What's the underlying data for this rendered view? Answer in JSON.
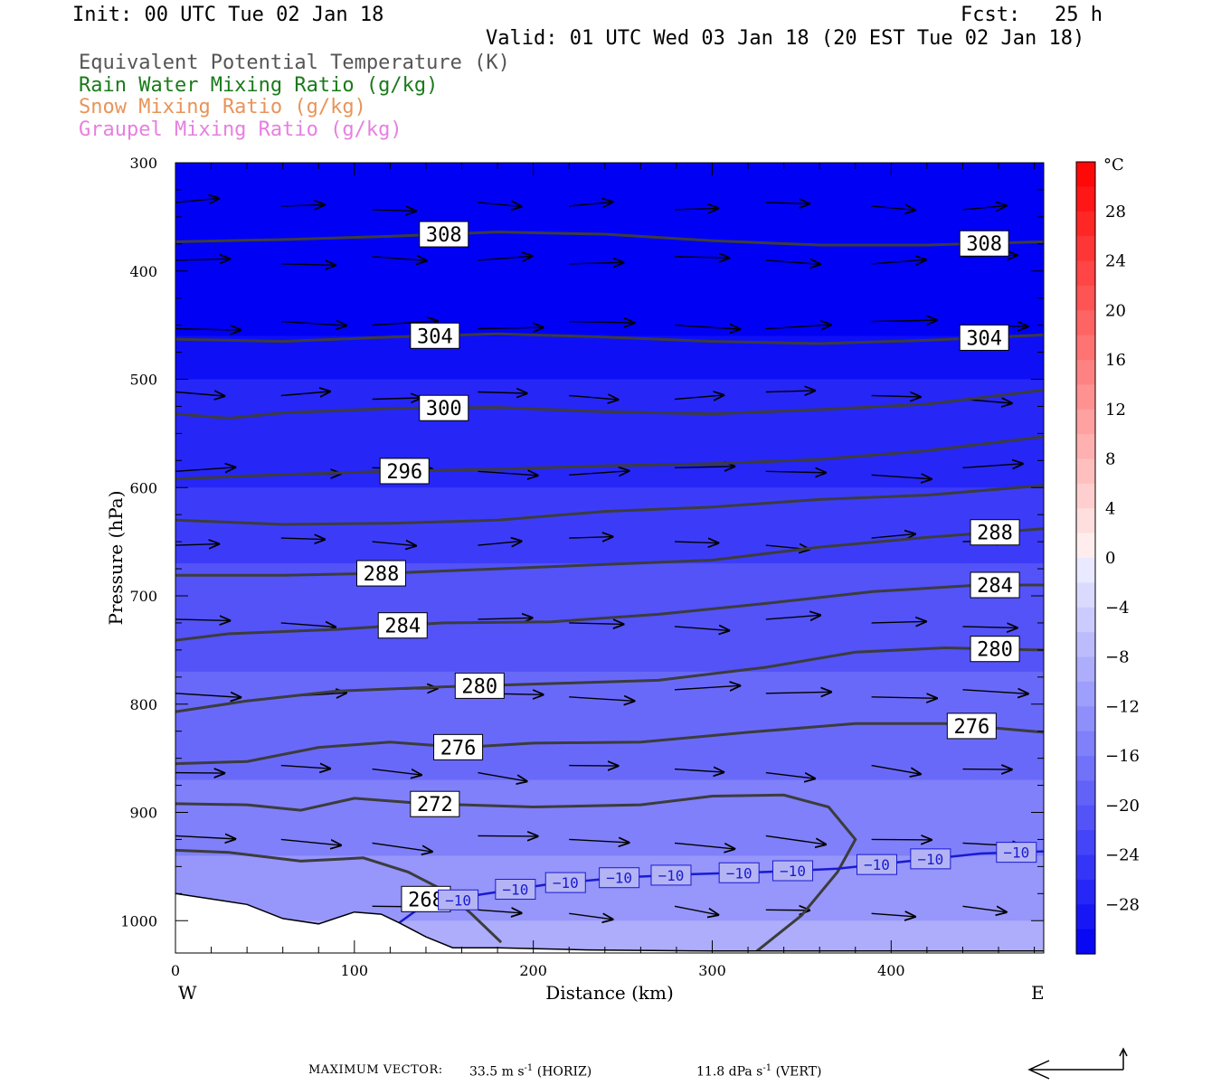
{
  "header": {
    "init": "Init: 00 UTC Tue 02 Jan 18",
    "fcst_label": "Fcst:",
    "fcst_value": "25 h",
    "valid": "Valid: 01 UTC Wed 03 Jan 18 (20 EST Tue 02 Jan 18)",
    "fields": [
      {
        "text": "Equivalent Potential Temperature (K)",
        "color": "#555555"
      },
      {
        "text": "Rain Water Mixing Ratio (g/kg)",
        "color": "#1a7a1a"
      },
      {
        "text": "Snow Mixing Ratio (g/kg)",
        "color": "#e8945a"
      },
      {
        "text": "Graupel Mixing Ratio (g/kg)",
        "color": "#e77fe0"
      }
    ]
  },
  "footer": {
    "max_vector_label": "MAXIMUM VECTOR:",
    "horiz_value": "33.5 m s",
    "horiz_exp": "-1",
    "horiz_tag": "(HORIZ)",
    "vert_value": "11.8 dPa s",
    "vert_exp": "-1",
    "vert_tag": "(VERT)"
  },
  "chart_data": {
    "type": "heatmap",
    "xlabel": "Distance (km)",
    "ylabel": "Pressure (hPa)",
    "x_end_labels": {
      "left": "W",
      "right": "E"
    },
    "xlim": [
      0,
      485
    ],
    "ylim": [
      300,
      1030
    ],
    "x_ticks": [
      0,
      100,
      200,
      300,
      400
    ],
    "y_ticks": [
      300,
      400,
      500,
      600,
      700,
      800,
      900,
      1000
    ],
    "colorbar": {
      "unit": "°C",
      "min": -32,
      "max": 32,
      "step": 4,
      "labels": [
        28,
        24,
        20,
        16,
        12,
        8,
        4,
        0,
        -4,
        -8,
        -12,
        -16,
        -20,
        -24,
        -28
      ]
    },
    "temperature_field": [
      {
        "p": 300,
        "t": -32
      },
      {
        "p": 450,
        "t": -32
      },
      {
        "p": 500,
        "t": -28
      },
      {
        "p": 580,
        "t": -26
      },
      {
        "p": 650,
        "t": -23
      },
      {
        "p": 750,
        "t": -20
      },
      {
        "p": 850,
        "t": -17
      },
      {
        "p": 930,
        "t": -14
      },
      {
        "p": 1030,
        "t": -9
      }
    ],
    "theta_e_contours": [
      {
        "label": "308",
        "label_x": [
          150,
          452
        ],
        "points": [
          [
            0,
            373
          ],
          [
            60,
            371
          ],
          [
            120,
            368
          ],
          [
            180,
            364
          ],
          [
            240,
            366
          ],
          [
            300,
            372
          ],
          [
            360,
            376
          ],
          [
            420,
            376
          ],
          [
            485,
            373
          ]
        ]
      },
      {
        "label": "304",
        "label_x": [
          145,
          452
        ],
        "points": [
          [
            0,
            463
          ],
          [
            60,
            465
          ],
          [
            120,
            461
          ],
          [
            180,
            458
          ],
          [
            240,
            461
          ],
          [
            300,
            465
          ],
          [
            360,
            467
          ],
          [
            420,
            464
          ],
          [
            485,
            459
          ]
        ]
      },
      {
        "label": "300",
        "label_x": [
          150,
          null
        ],
        "points": [
          [
            0,
            532
          ],
          [
            30,
            536
          ],
          [
            60,
            531
          ],
          [
            120,
            527
          ],
          [
            180,
            526
          ],
          [
            240,
            530
          ],
          [
            300,
            532
          ],
          [
            360,
            528
          ],
          [
            420,
            523
          ],
          [
            485,
            510
          ]
        ]
      },
      {
        "label": "296",
        "label_x": [
          128,
          null
        ],
        "points": [
          [
            0,
            592
          ],
          [
            60,
            588
          ],
          [
            120,
            585
          ],
          [
            180,
            583
          ],
          [
            240,
            580
          ],
          [
            300,
            578
          ],
          [
            360,
            574
          ],
          [
            420,
            566
          ],
          [
            485,
            553
          ]
        ]
      },
      {
        "label": null,
        "label_x": [
          null,
          null
        ],
        "points": [
          [
            0,
            630
          ],
          [
            60,
            634
          ],
          [
            120,
            633
          ],
          [
            180,
            630
          ],
          [
            240,
            622
          ],
          [
            300,
            618
          ],
          [
            360,
            611
          ],
          [
            420,
            607
          ],
          [
            485,
            598
          ]
        ]
      },
      {
        "label": "288",
        "label_x": [
          115,
          458
        ],
        "points": [
          [
            0,
            681
          ],
          [
            60,
            681
          ],
          [
            120,
            679
          ],
          [
            180,
            675
          ],
          [
            240,
            671
          ],
          [
            300,
            667
          ],
          [
            360,
            655
          ],
          [
            420,
            646
          ],
          [
            485,
            638
          ]
        ]
      },
      {
        "label": "284",
        "label_x": [
          127,
          458
        ],
        "points": [
          [
            0,
            741
          ],
          [
            30,
            735
          ],
          [
            90,
            731
          ],
          [
            150,
            725
          ],
          [
            210,
            724
          ],
          [
            270,
            717
          ],
          [
            330,
            707
          ],
          [
            390,
            696
          ],
          [
            450,
            690
          ],
          [
            485,
            690
          ]
        ]
      },
      {
        "label": "280",
        "label_x": [
          170,
          458
        ],
        "points": [
          [
            0,
            807
          ],
          [
            40,
            797
          ],
          [
            90,
            788
          ],
          [
            150,
            784
          ],
          [
            210,
            781
          ],
          [
            270,
            778
          ],
          [
            330,
            766
          ],
          [
            380,
            752
          ],
          [
            430,
            748
          ],
          [
            485,
            750
          ]
        ]
      },
      {
        "label": "276",
        "label_x": [
          158,
          445
        ],
        "points": [
          [
            0,
            855
          ],
          [
            40,
            853
          ],
          [
            80,
            840
          ],
          [
            120,
            835
          ],
          [
            160,
            840
          ],
          [
            200,
            836
          ],
          [
            260,
            835
          ],
          [
            320,
            826
          ],
          [
            380,
            818
          ],
          [
            430,
            818
          ],
          [
            485,
            826
          ]
        ]
      },
      {
        "label": "272",
        "label_x": [
          145,
          null
        ],
        "points": [
          [
            0,
            892
          ],
          [
            40,
            893
          ],
          [
            70,
            898
          ],
          [
            100,
            887
          ],
          [
            140,
            892
          ],
          [
            200,
            895
          ],
          [
            260,
            893
          ],
          [
            300,
            885
          ],
          [
            340,
            884
          ],
          [
            365,
            895
          ],
          [
            380,
            925
          ],
          [
            370,
            955
          ],
          [
            350,
            995
          ],
          [
            325,
            1028
          ]
        ]
      },
      {
        "label": null,
        "label_x": [
          null,
          null
        ],
        "points": [
          [
            0,
            935
          ],
          [
            30,
            937
          ],
          [
            70,
            945
          ],
          [
            105,
            942
          ],
          [
            130,
            955
          ],
          [
            150,
            972
          ],
          [
            165,
            993
          ],
          [
            182,
            1020
          ]
        ]
      },
      {
        "label": "268",
        "label_x": [
          140,
          null
        ],
        "points": []
      }
    ],
    "isotherm_minus10": {
      "label": "−10",
      "label_x": [
        158,
        190,
        218,
        248,
        277,
        315,
        345,
        392,
        422,
        470
      ],
      "points": [
        [
          120,
          1008
        ],
        [
          135,
          990
        ],
        [
          170,
          976
        ],
        [
          210,
          966
        ],
        [
          250,
          960
        ],
        [
          290,
          957
        ],
        [
          330,
          955
        ],
        [
          370,
          952
        ],
        [
          410,
          945
        ],
        [
          450,
          938
        ],
        [
          485,
          936
        ]
      ]
    },
    "terrain": [
      [
        0,
        975
      ],
      [
        20,
        980
      ],
      [
        40,
        985
      ],
      [
        60,
        998
      ],
      [
        80,
        1003
      ],
      [
        100,
        992
      ],
      [
        115,
        994
      ],
      [
        125,
        1002
      ],
      [
        140,
        1015
      ],
      [
        155,
        1025
      ],
      [
        180,
        1025
      ],
      [
        230,
        1027
      ],
      [
        300,
        1028
      ],
      [
        380,
        1028
      ],
      [
        440,
        1028
      ],
      [
        485,
        1028
      ]
    ],
    "wind_vectors": {
      "columns_km": [
        0,
        55,
        110,
        165,
        220,
        275,
        330,
        385,
        440,
        485
      ],
      "levels_hpa": [
        340,
        390,
        450,
        515,
        585,
        650,
        725,
        790,
        860,
        925,
        990
      ]
    }
  }
}
